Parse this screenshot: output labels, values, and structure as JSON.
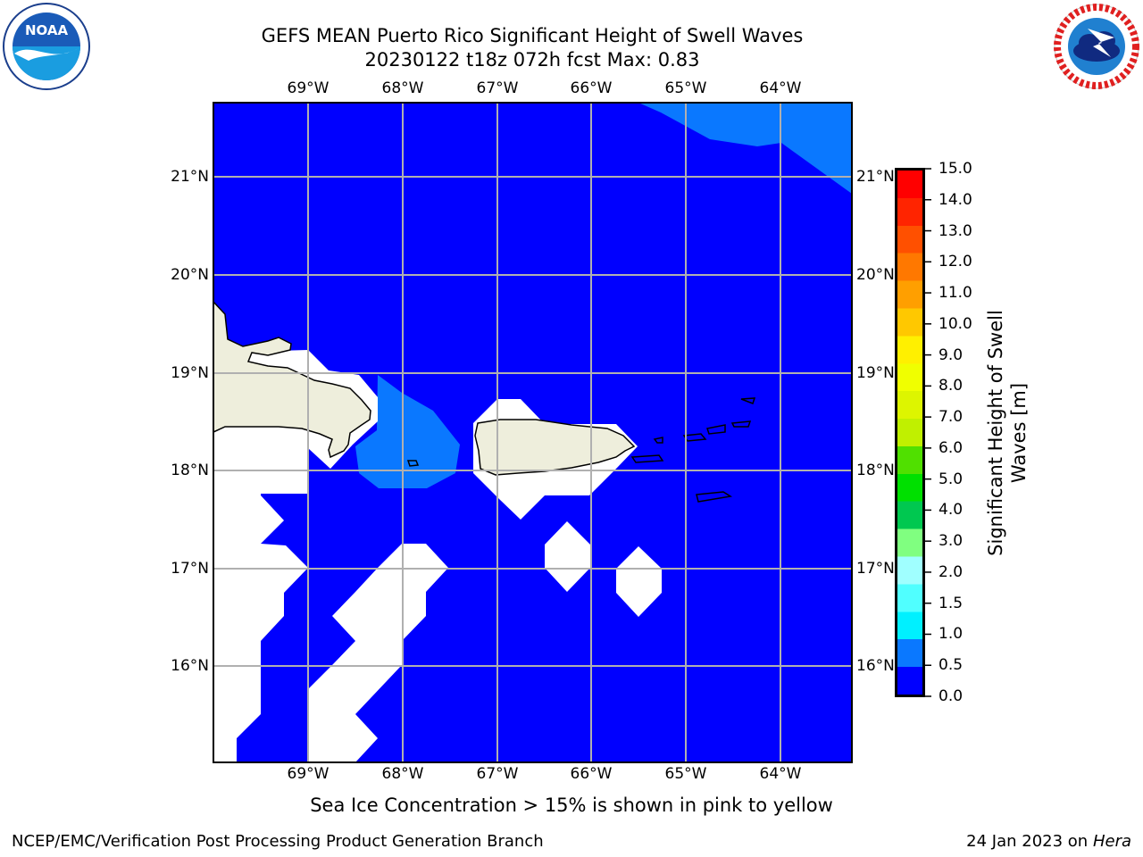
{
  "header": {
    "title_line1": "GEFS MEAN Puerto Rico Significant Height of Swell Waves",
    "title_line2": "20230122 t18z 072h fcst   Max: 0.83"
  },
  "logos": {
    "left": {
      "icon": "noaa-logo",
      "text": "NOAA"
    },
    "right": {
      "icon": "nws-logo"
    }
  },
  "map": {
    "lon_labels": [
      "69°W",
      "68°W",
      "67°W",
      "66°W",
      "65°W",
      "64°W"
    ],
    "lat_labels": [
      "21°N",
      "20°N",
      "19°N",
      "18°N",
      "17°N",
      "16°N"
    ],
    "colors": {
      "ocean_low": "#0000ff",
      "ocean_mid": "#0a78ff",
      "land": "#eeeedc",
      "nodata": "#ffffff",
      "grid": "#b0b0b0"
    }
  },
  "colorbar": {
    "title": "Significant Height of Swell Waves [m]",
    "ticks": [
      "15.0",
      "14.0",
      "13.0",
      "12.0",
      "11.0",
      "10.0",
      "9.0",
      "8.0",
      "7.0",
      "6.0",
      "5.0",
      "4.0",
      "3.0",
      "2.0",
      "1.5",
      "1.0",
      "0.5",
      "0.0"
    ],
    "colors_top_to_bottom": [
      "#ff0000",
      "#ff2400",
      "#ff5000",
      "#ff7800",
      "#ff9f00",
      "#ffc800",
      "#fff000",
      "#f0ff00",
      "#ddf500",
      "#c0f000",
      "#50e000",
      "#00e000",
      "#00c850",
      "#80ff80",
      "#a0ffff",
      "#50ffff",
      "#00f0ff",
      "#0a78ff",
      "#0000ff"
    ]
  },
  "subtitle": "Sea Ice Concentration > 15% is shown in pink to yellow",
  "footer": {
    "left": "NCEP/EMC/Verification Post Processing Product Generation Branch",
    "right_date": "24 Jan 2023 on ",
    "right_host": "Hera"
  }
}
